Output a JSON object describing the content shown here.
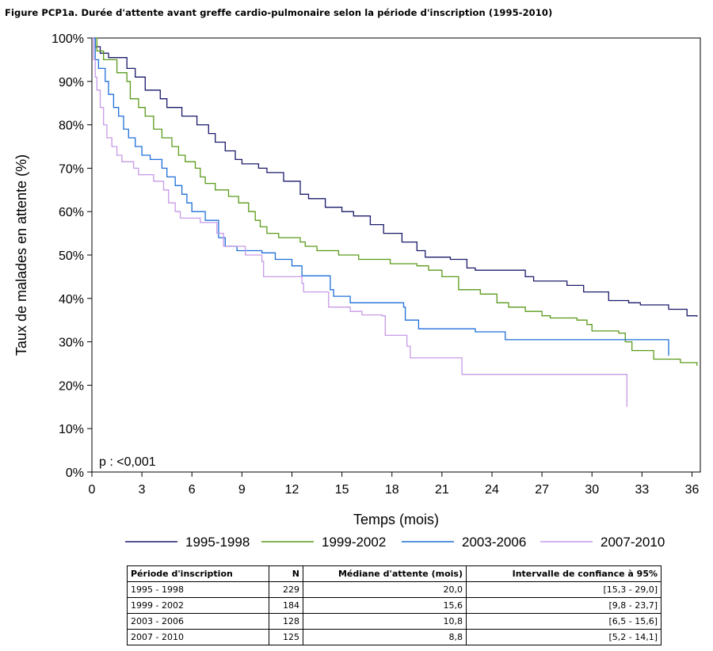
{
  "figure_title": "Figure PCP1a. Durée d'attente avant greffe cardio-pulmonaire selon la période d'inscription (1995-2010)",
  "chart_data": {
    "type": "line",
    "step": true,
    "xlabel": "Temps (mois)",
    "ylabel": "Taux de malades en attente (%)",
    "xlim": [
      0,
      36.5
    ],
    "ylim": [
      0,
      100
    ],
    "xticks": [
      0,
      3,
      6,
      9,
      12,
      15,
      18,
      21,
      24,
      27,
      30,
      33,
      36
    ],
    "yticks": [
      0,
      10,
      20,
      30,
      40,
      50,
      60,
      70,
      80,
      90,
      100
    ],
    "ytick_labels": [
      "0%",
      "10%",
      "20%",
      "30%",
      "40%",
      "50%",
      "60%",
      "70%",
      "80%",
      "90%",
      "100%"
    ],
    "annotation": "p : <0,001",
    "legend_position": "bottom",
    "grid": false,
    "series": [
      {
        "name": "1995-1998",
        "color": "#1a1a6b",
        "points": [
          [
            0,
            100
          ],
          [
            0.2,
            98
          ],
          [
            0.5,
            96.5
          ],
          [
            1,
            95.5
          ],
          [
            2,
            95.5
          ],
          [
            2.1,
            93
          ],
          [
            2.6,
            91
          ],
          [
            3.2,
            88
          ],
          [
            4.1,
            86
          ],
          [
            4.5,
            84
          ],
          [
            5.4,
            82
          ],
          [
            6.3,
            80
          ],
          [
            7,
            78
          ],
          [
            7.4,
            76
          ],
          [
            8,
            74
          ],
          [
            8.6,
            72
          ],
          [
            9,
            71
          ],
          [
            10,
            70
          ],
          [
            10.5,
            69
          ],
          [
            11.5,
            67
          ],
          [
            12.5,
            64
          ],
          [
            13,
            63
          ],
          [
            14,
            61
          ],
          [
            15,
            60
          ],
          [
            15.7,
            59
          ],
          [
            16.7,
            57
          ],
          [
            17.5,
            55
          ],
          [
            18.6,
            53
          ],
          [
            19.5,
            51
          ],
          [
            20,
            49.5
          ],
          [
            21.5,
            49
          ],
          [
            22.5,
            47
          ],
          [
            23,
            46.5
          ],
          [
            26,
            45
          ],
          [
            26.5,
            44
          ],
          [
            28.5,
            43
          ],
          [
            29.5,
            41.5
          ],
          [
            31,
            39.5
          ],
          [
            32.2,
            39
          ],
          [
            32.9,
            38.5
          ],
          [
            34.6,
            37.5
          ],
          [
            35.7,
            36
          ],
          [
            36.3,
            35.8
          ]
        ]
      },
      {
        "name": "1999-2002",
        "color": "#5a9a1a",
        "points": [
          [
            0,
            100
          ],
          [
            0.3,
            97
          ],
          [
            0.7,
            95
          ],
          [
            1.5,
            92
          ],
          [
            2.1,
            90
          ],
          [
            2.3,
            86
          ],
          [
            2.8,
            84
          ],
          [
            3.2,
            82
          ],
          [
            3.7,
            79
          ],
          [
            4.2,
            77
          ],
          [
            4.8,
            75
          ],
          [
            5.2,
            73
          ],
          [
            5.6,
            71.5
          ],
          [
            6.2,
            70
          ],
          [
            6.5,
            68
          ],
          [
            6.8,
            66.5
          ],
          [
            7.4,
            65
          ],
          [
            8.2,
            63.5
          ],
          [
            8.8,
            62
          ],
          [
            9.4,
            60
          ],
          [
            9.8,
            58
          ],
          [
            10.1,
            56.5
          ],
          [
            10.5,
            55
          ],
          [
            11.2,
            54
          ],
          [
            12.5,
            53
          ],
          [
            12.8,
            52
          ],
          [
            13.5,
            51
          ],
          [
            14.8,
            50
          ],
          [
            16,
            49
          ],
          [
            17.9,
            48
          ],
          [
            19.5,
            47.5
          ],
          [
            20.2,
            46.5
          ],
          [
            21,
            45
          ],
          [
            22,
            42
          ],
          [
            23.3,
            41
          ],
          [
            24.3,
            39
          ],
          [
            25,
            38
          ],
          [
            26,
            37
          ],
          [
            27,
            36
          ],
          [
            27.5,
            35.5
          ],
          [
            29.1,
            35
          ],
          [
            29.7,
            34
          ],
          [
            30,
            32.5
          ],
          [
            31.6,
            32
          ],
          [
            32,
            30
          ],
          [
            32.4,
            28
          ],
          [
            33.7,
            26
          ],
          [
            35.3,
            25.2
          ],
          [
            36.3,
            24.5
          ]
        ]
      },
      {
        "name": "2003-2006",
        "color": "#1e6fd9",
        "points": [
          [
            0,
            100
          ],
          [
            0.2,
            95
          ],
          [
            0.4,
            93
          ],
          [
            0.8,
            90
          ],
          [
            1,
            87
          ],
          [
            1.3,
            84
          ],
          [
            1.6,
            82
          ],
          [
            1.9,
            79
          ],
          [
            2.2,
            77
          ],
          [
            2.6,
            75
          ],
          [
            3,
            73
          ],
          [
            3.5,
            72
          ],
          [
            4.2,
            70
          ],
          [
            4.5,
            68
          ],
          [
            5,
            66
          ],
          [
            5.4,
            64
          ],
          [
            5.7,
            62
          ],
          [
            6,
            60
          ],
          [
            6.8,
            58
          ],
          [
            7.6,
            54
          ],
          [
            8,
            52
          ],
          [
            8.7,
            51
          ],
          [
            10.2,
            50.5
          ],
          [
            11,
            49
          ],
          [
            12,
            47.5
          ],
          [
            12.6,
            45.2
          ],
          [
            14.3,
            42
          ],
          [
            14.5,
            40.5
          ],
          [
            15.5,
            39
          ],
          [
            18.7,
            38
          ],
          [
            18.8,
            35
          ],
          [
            19.6,
            33
          ],
          [
            23,
            32.3
          ],
          [
            24.8,
            30.5
          ],
          [
            34.6,
            30
          ],
          [
            34.6,
            26.8
          ]
        ]
      },
      {
        "name": "2007-2010",
        "color": "#c79ae8",
        "points": [
          [
            0,
            100
          ],
          [
            0.1,
            95
          ],
          [
            0.2,
            91
          ],
          [
            0.3,
            88
          ],
          [
            0.5,
            84
          ],
          [
            0.7,
            80
          ],
          [
            0.9,
            77
          ],
          [
            1.2,
            75
          ],
          [
            1.5,
            73
          ],
          [
            1.8,
            71.5
          ],
          [
            2.5,
            70
          ],
          [
            2.8,
            68.5
          ],
          [
            3.7,
            67
          ],
          [
            4.3,
            65
          ],
          [
            4.6,
            62
          ],
          [
            5,
            60
          ],
          [
            5.3,
            58.5
          ],
          [
            6.5,
            57.5
          ],
          [
            7.5,
            55
          ],
          [
            7.9,
            52
          ],
          [
            9.2,
            50
          ],
          [
            10.2,
            48.5
          ],
          [
            10.3,
            45
          ],
          [
            12.6,
            43.5
          ],
          [
            12.7,
            41.5
          ],
          [
            14.2,
            38
          ],
          [
            15.5,
            37
          ],
          [
            16.2,
            36.2
          ],
          [
            17.4,
            36
          ],
          [
            17.6,
            31.5
          ],
          [
            18.9,
            29
          ],
          [
            19.1,
            26.3
          ],
          [
            22.1,
            26.3
          ],
          [
            22.2,
            22.5
          ],
          [
            29.7,
            22.5
          ],
          [
            32.1,
            15
          ]
        ]
      }
    ]
  },
  "table": {
    "headers": [
      "Période d'inscription",
      "N",
      "Médiane d'attente (mois)",
      "Intervalle de confiance à 95%"
    ],
    "rows": [
      [
        "1995 - 1998",
        "229",
        "20,0",
        "[15,3 - 29,0]"
      ],
      [
        "1999 - 2002",
        "184",
        "15,6",
        "[9,8 - 23,7]"
      ],
      [
        "2003 - 2006",
        "128",
        "10,8",
        "[6,5 - 15,6]"
      ],
      [
        "2007 - 2010",
        "125",
        "8,8",
        "[5,2 - 14,1]"
      ]
    ]
  }
}
